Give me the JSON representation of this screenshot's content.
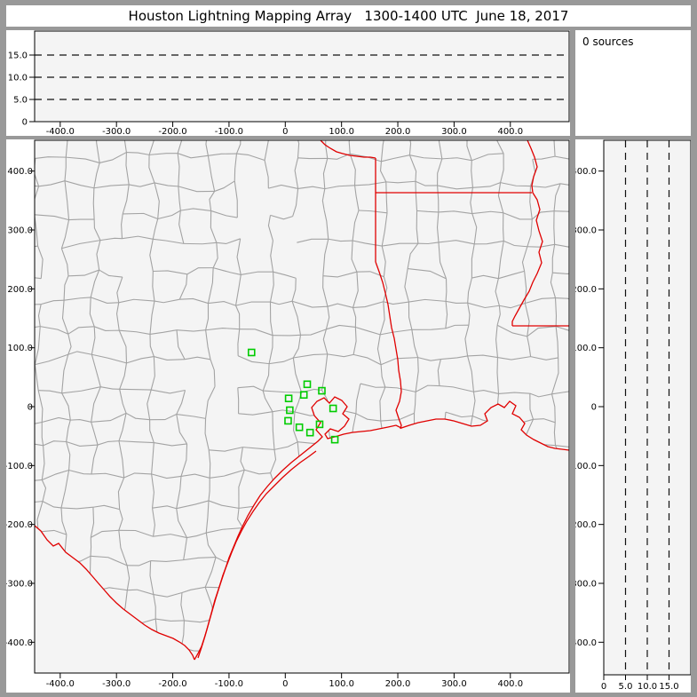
{
  "window": {
    "title": "Houston Lightning Mapping Array   1300-1400 UTC  June 18, 2017"
  },
  "colors": {
    "frame": "#999999",
    "panel_bg": "#ffffff",
    "plot_bg": "#f4f4f4",
    "axis": "#000000",
    "grid_dash": "#111111",
    "county_line": "#a3a3a3",
    "state_border": "#e00000",
    "station_marker": "#00cc00"
  },
  "chart_data": {
    "type": "scatter",
    "title": "Houston Lightning Mapping Array 1300-1400 UTC June 18, 2017",
    "source_count": 0,
    "source_count_label": "0 sources",
    "lightning_points": [],
    "panels": {
      "cross_section_top": {
        "description": "altitude (km) vs east-west distance (km)",
        "x_range": [
          -445,
          505
        ],
        "y_range": [
          0,
          20.4
        ],
        "y_ticks": [
          {
            "v": 15,
            "label": "15.0"
          },
          {
            "v": 10,
            "label": "10.0"
          },
          {
            "v": 5,
            "label": "5.0"
          },
          {
            "v": 0,
            "label": "0"
          }
        ],
        "x_ticks": [
          {
            "v": -400,
            "label": "-400.0"
          },
          {
            "v": -300,
            "label": "-300.0"
          },
          {
            "v": -200,
            "label": "-200.0"
          },
          {
            "v": -100,
            "label": "-100.0"
          },
          {
            "v": 0,
            "label": "0"
          },
          {
            "v": 100,
            "label": "100.0"
          },
          {
            "v": 200,
            "label": "200.0"
          },
          {
            "v": 300,
            "label": "300.0"
          },
          {
            "v": 400,
            "label": "400.0"
          }
        ],
        "dashed_levels": [
          5,
          10,
          15
        ],
        "grid": "dashed horizontal"
      },
      "plan_view_map": {
        "description": "plan view map, distance north (km) vs distance east (km), county and state boundaries",
        "x_range": [
          -445,
          505
        ],
        "y_range": [
          -453,
          452
        ],
        "x_ticks": [
          {
            "v": -400,
            "label": "-400.0"
          },
          {
            "v": -300,
            "label": "-300.0"
          },
          {
            "v": -200,
            "label": "-200.0"
          },
          {
            "v": -100,
            "label": "-100.0"
          },
          {
            "v": 0,
            "label": "0"
          },
          {
            "v": 100,
            "label": "100.0"
          },
          {
            "v": 200,
            "label": "200.0"
          },
          {
            "v": 300,
            "label": "300.0"
          },
          {
            "v": 400,
            "label": "400.0"
          }
        ],
        "y_ticks": [
          {
            "v": 400,
            "label": "400.0"
          },
          {
            "v": 300,
            "label": "300.0"
          },
          {
            "v": 200,
            "label": "200.0"
          },
          {
            "v": 100,
            "label": "100.0"
          },
          {
            "v": 0,
            "label": "0"
          },
          {
            "v": -100,
            "label": "-100.0"
          },
          {
            "v": -200,
            "label": "-200.0"
          },
          {
            "v": -300,
            "label": "-300.0"
          },
          {
            "v": -400,
            "label": "-400.0"
          }
        ],
        "station_markers_km": [
          [
            -60,
            92
          ],
          [
            39,
            38
          ],
          [
            65,
            27
          ],
          [
            33,
            20
          ],
          [
            6,
            14
          ],
          [
            8,
            -6
          ],
          [
            85,
            -3
          ],
          [
            5,
            -24
          ],
          [
            25,
            -35
          ],
          [
            61,
            -30
          ],
          [
            44,
            -44
          ],
          [
            88,
            -56
          ]
        ]
      },
      "cross_section_right": {
        "description": "distance north (km) vs altitude (km)",
        "x_range": [
          0,
          20
        ],
        "y_range": [
          -453,
          452
        ],
        "x_ticks": [
          {
            "v": 0,
            "label": "0"
          },
          {
            "v": 5,
            "label": "5.0"
          },
          {
            "v": 10,
            "label": "10.0"
          },
          {
            "v": 15,
            "label": "15.0"
          }
        ],
        "y_ticks": [
          {
            "v": 400,
            "label": "400.0"
          },
          {
            "v": 300,
            "label": "300.0"
          },
          {
            "v": 200,
            "label": "200.0"
          },
          {
            "v": 100,
            "label": "100.0"
          },
          {
            "v": 0,
            "label": "0"
          },
          {
            "v": -100,
            "label": "-100.0"
          },
          {
            "v": -200,
            "label": "-200.0"
          },
          {
            "v": -300,
            "label": "-300.0"
          },
          {
            "v": -400,
            "label": "-400.0"
          }
        ],
        "dashed_levels": [
          5,
          10,
          15
        ],
        "grid": "dashed vertical"
      }
    }
  }
}
